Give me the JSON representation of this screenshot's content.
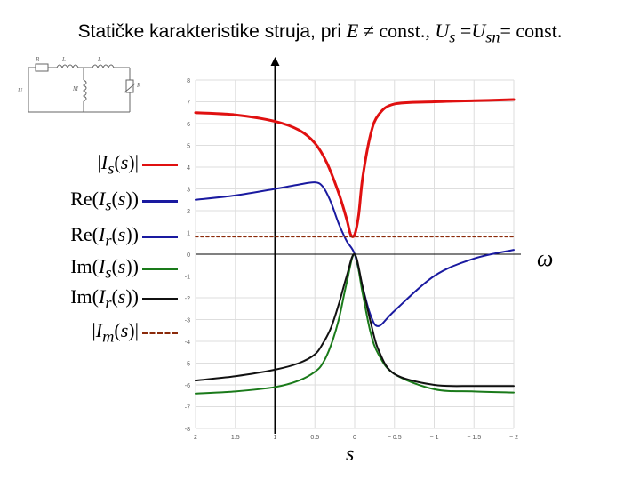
{
  "title": {
    "text_prefix": "Statičke karakteristike struja, pri ",
    "E": "E",
    "neq_const": " ≠ const., ",
    "U": "U",
    "U_sub": "s",
    "eq": " =",
    "Usn": "U",
    "Usn_sub": "sn",
    "eq_const": "= const."
  },
  "legend": [
    {
      "name": "abs-Is",
      "pre": "|",
      "var": "I",
      "sub": "s",
      "post": "(",
      "arg": "s",
      "end": ")|",
      "color": "#e01010"
    },
    {
      "name": "re-Is",
      "pre": "Re(",
      "var": "I",
      "sub": "s",
      "post": "(",
      "arg": "s",
      "end": "))",
      "color": "#1a1aa0"
    },
    {
      "name": "re-Ir",
      "pre": "Re(",
      "var": "I",
      "sub": "r",
      "post": "(",
      "arg": "s",
      "end": "))",
      "color": "#1a1aa0"
    },
    {
      "name": "im-Is",
      "pre": "Im(",
      "var": "I",
      "sub": "s",
      "post": "(",
      "arg": "s",
      "end": "))",
      "color": "#1a7a1a"
    },
    {
      "name": "im-Ir",
      "pre": "Im(",
      "var": "I",
      "sub": "r",
      "post": "(",
      "arg": "s",
      "end": "))",
      "color": "#111111"
    },
    {
      "name": "abs-Im",
      "pre": "|",
      "var": "I",
      "sub": "m",
      "post": "(",
      "arg": "s",
      "end": ")|",
      "color": "#8b2a0a"
    }
  ],
  "axis_labels": {
    "omega": "ω",
    "s": "s"
  },
  "circuit": {
    "labels": [
      "R",
      "L",
      "L",
      "U",
      "M",
      "R"
    ]
  },
  "chart_data": {
    "type": "line",
    "x_axis_reversed": true,
    "xlim": [
      2,
      -2
    ],
    "ylim": [
      -8,
      8
    ],
    "x_ticks": [
      "2",
      "1.5",
      "1",
      "0.5",
      "0",
      "− 0.5",
      "− 1",
      "− 1.5",
      "− 2"
    ],
    "x_tick_values": [
      2,
      1.5,
      1,
      0.5,
      0,
      -0.5,
      -1,
      -1.5,
      -2
    ],
    "y_ticks": [
      8,
      7,
      6,
      5,
      4,
      3,
      2,
      1,
      0,
      -1,
      -2,
      -3,
      -4,
      -5,
      -6,
      -7,
      -8
    ],
    "series": [
      {
        "key": "abs-Is",
        "color": "#e01010",
        "width": 3,
        "x": [
          2,
          1.5,
          1,
          0.7,
          0.5,
          0.35,
          0.2,
          0.1,
          0.05,
          0,
          -0.05,
          -0.1,
          -0.2,
          -0.3,
          -0.5,
          -1,
          -1.5,
          -2
        ],
        "y": [
          6.5,
          6.4,
          6.1,
          5.7,
          5.1,
          4.2,
          2.8,
          1.6,
          0.9,
          0.9,
          1.8,
          3.5,
          5.5,
          6.4,
          6.9,
          7.0,
          7.05,
          7.1
        ]
      },
      {
        "key": "re-Is",
        "color": "#1a1aa0",
        "width": 2,
        "x": [
          2,
          1.5,
          1,
          0.7,
          0.5,
          0.4,
          0.3,
          0.2,
          0.1,
          0,
          -0.1,
          -0.2,
          -0.3,
          -0.5,
          -1,
          -1.5,
          -2
        ],
        "y": [
          2.5,
          2.7,
          3.0,
          3.2,
          3.3,
          3.1,
          2.4,
          1.4,
          0.6,
          0,
          -1.5,
          -2.8,
          -3.3,
          -2.6,
          -1.0,
          -0.2,
          0.2
        ]
      },
      {
        "key": "im-Is",
        "color": "#1a7a1a",
        "width": 2,
        "x": [
          2,
          1.5,
          1,
          0.7,
          0.5,
          0.4,
          0.3,
          0.2,
          0.1,
          0,
          -0.1,
          -0.2,
          -0.3,
          -0.5,
          -1,
          -1.5,
          -2
        ],
        "y": [
          -6.4,
          -6.3,
          -6.1,
          -5.8,
          -5.4,
          -5.0,
          -4.2,
          -3.0,
          -1.3,
          0,
          -1.8,
          -3.6,
          -4.6,
          -5.5,
          -6.2,
          -6.3,
          -6.35
        ]
      },
      {
        "key": "im-Ir",
        "color": "#111111",
        "width": 2,
        "x": [
          2,
          1.5,
          1,
          0.7,
          0.5,
          0.4,
          0.3,
          0.2,
          0.1,
          0,
          -0.1,
          -0.2,
          -0.3,
          -0.5,
          -1,
          -1.5,
          -2
        ],
        "y": [
          -5.8,
          -5.6,
          -5.3,
          -5.0,
          -4.6,
          -4.1,
          -3.4,
          -2.3,
          -1.0,
          0,
          -1.5,
          -3.1,
          -4.4,
          -5.5,
          -6.0,
          -6.05,
          -6.05
        ]
      },
      {
        "key": "abs-Im",
        "color": "#8b2a0a",
        "width": 1.5,
        "dashed": true,
        "x": [
          2,
          -2
        ],
        "y": [
          0.8,
          0.8
        ]
      }
    ]
  }
}
